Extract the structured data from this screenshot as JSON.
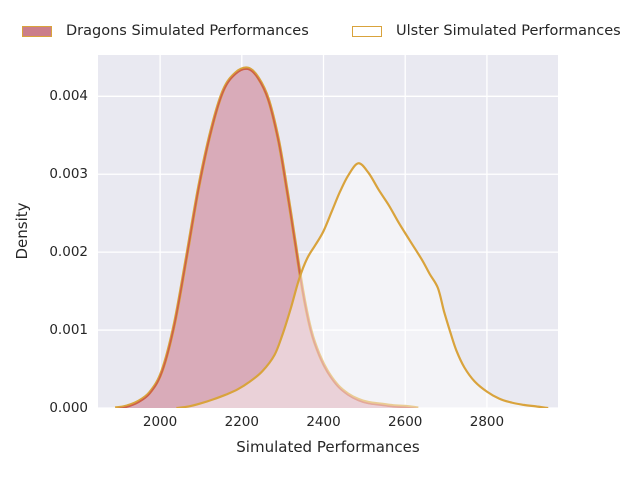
{
  "colors": {
    "figure_bg": "#ffffff",
    "axes_bg": "#e9e9f1",
    "grid": "#ffffff",
    "text": "#262626",
    "amber_line": "#d9a33c",
    "dragons_inner_line": "#cd5f4a",
    "dragons_fill": "#d9abb9",
    "ulster_fill_overlay": "rgba(255,255,255,0.45)",
    "legend_dragons_swatch": "#cb7e8b"
  },
  "chart_data": {
    "type": "area",
    "subtype": "kde-density",
    "title": "",
    "xlabel": "Simulated Performances",
    "ylabel": "Density",
    "xlim": [
      1848,
      2974
    ],
    "ylim": [
      0,
      0.00453
    ],
    "grid": true,
    "legend_position": "top",
    "x_ticks": [
      2000,
      2200,
      2400,
      2600,
      2800
    ],
    "x_tick_labels": [
      "2000",
      "2200",
      "2400",
      "2600",
      "2800"
    ],
    "y_ticks": [
      0,
      0.001,
      0.002,
      0.003,
      0.004
    ],
    "y_tick_labels": [
      "0.000",
      "0.001",
      "0.002",
      "0.003",
      "0.004"
    ],
    "series": [
      {
        "name": "Dragons Simulated Performances",
        "style": "filled",
        "peak_x": 2215,
        "peak_density": 0.00436,
        "points": [
          [
            1890,
            0
          ],
          [
            1915,
            2e-05
          ],
          [
            1945,
            8e-05
          ],
          [
            1975,
            0.0002
          ],
          [
            2005,
            0.00048
          ],
          [
            2035,
            0.00108
          ],
          [
            2065,
            0.00195
          ],
          [
            2095,
            0.00285
          ],
          [
            2125,
            0.00357
          ],
          [
            2155,
            0.00408
          ],
          [
            2185,
            0.0043
          ],
          [
            2215,
            0.00436
          ],
          [
            2240,
            0.00424
          ],
          [
            2265,
            0.00396
          ],
          [
            2290,
            0.00343
          ],
          [
            2310,
            0.00282
          ],
          [
            2330,
            0.00215
          ],
          [
            2350,
            0.00148
          ],
          [
            2370,
            0.00098
          ],
          [
            2390,
            0.00068
          ],
          [
            2410,
            0.00047
          ],
          [
            2435,
            0.00029
          ],
          [
            2460,
            0.00018
          ],
          [
            2485,
            0.00011
          ],
          [
            2510,
            7e-05
          ],
          [
            2540,
            5e-05
          ],
          [
            2570,
            3e-05
          ],
          [
            2600,
            2e-05
          ],
          [
            2618,
            1e-05
          ],
          [
            2632,
            0
          ]
        ]
      },
      {
        "name": "Ulster Simulated Performances",
        "style": "outline",
        "peak_x": 2485,
        "peak_density": 0.00314,
        "points": [
          [
            2040,
            0
          ],
          [
            2070,
            2e-05
          ],
          [
            2100,
            6e-05
          ],
          [
            2130,
            0.00011
          ],
          [
            2160,
            0.00017
          ],
          [
            2190,
            0.00024
          ],
          [
            2220,
            0.00034
          ],
          [
            2250,
            0.00047
          ],
          [
            2280,
            0.00068
          ],
          [
            2300,
            0.00095
          ],
          [
            2320,
            0.00128
          ],
          [
            2340,
            0.00165
          ],
          [
            2360,
            0.00192
          ],
          [
            2380,
            0.00209
          ],
          [
            2400,
            0.00227
          ],
          [
            2420,
            0.00252
          ],
          [
            2440,
            0.00277
          ],
          [
            2460,
            0.00298
          ],
          [
            2485,
            0.00314
          ],
          [
            2510,
            0.00302
          ],
          [
            2535,
            0.0028
          ],
          [
            2560,
            0.0026
          ],
          [
            2585,
            0.00237
          ],
          [
            2610,
            0.00216
          ],
          [
            2640,
            0.00191
          ],
          [
            2660,
            0.00172
          ],
          [
            2680,
            0.00154
          ],
          [
            2695,
            0.00124
          ],
          [
            2710,
            0.00098
          ],
          [
            2725,
            0.00074
          ],
          [
            2745,
            0.00052
          ],
          [
            2770,
            0.00034
          ],
          [
            2800,
            0.00021
          ],
          [
            2830,
            0.00012
          ],
          [
            2860,
            7e-05
          ],
          [
            2890,
            4e-05
          ],
          [
            2920,
            2e-05
          ],
          [
            2950,
            0
          ]
        ]
      }
    ]
  }
}
